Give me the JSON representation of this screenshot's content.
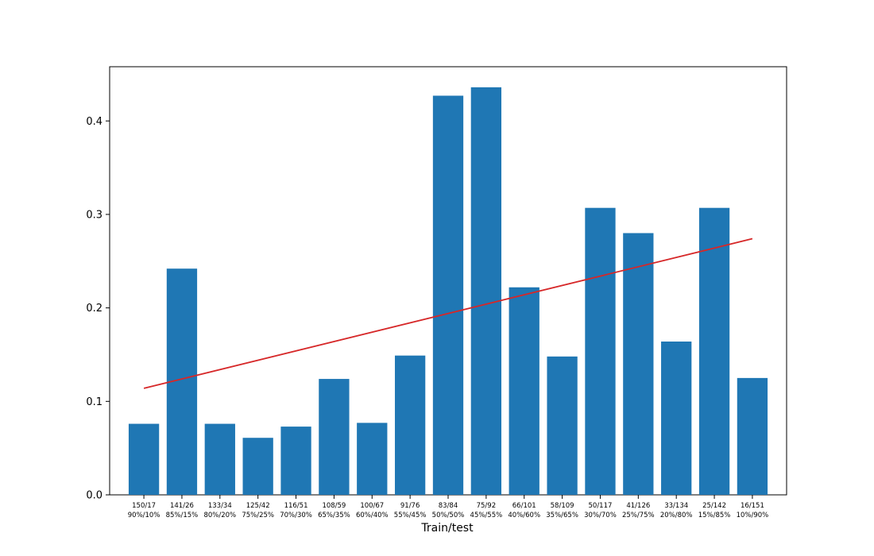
{
  "chart_data": {
    "type": "bar",
    "title": "",
    "xlabel": "Train/test",
    "ylabel": "",
    "ylim": [
      0,
      0.458
    ],
    "yticks": [
      "0.0",
      "0.1",
      "0.2",
      "0.3",
      "0.4"
    ],
    "grid": false,
    "legend": "none",
    "categories": [
      {
        "counts": "150/17",
        "percent": "90%/10%"
      },
      {
        "counts": "141/26",
        "percent": "85%/15%"
      },
      {
        "counts": "133/34",
        "percent": "80%/20%"
      },
      {
        "counts": "125/42",
        "percent": "75%/25%"
      },
      {
        "counts": "116/51",
        "percent": "70%/30%"
      },
      {
        "counts": "108/59",
        "percent": "65%/35%"
      },
      {
        "counts": "100/67",
        "percent": "60%/40%"
      },
      {
        "counts": "91/76",
        "percent": "55%/45%"
      },
      {
        "counts": "83/84",
        "percent": "50%/50%"
      },
      {
        "counts": "75/92",
        "percent": "45%/55%"
      },
      {
        "counts": "66/101",
        "percent": "40%/60%"
      },
      {
        "counts": "58/109",
        "percent": "35%/65%"
      },
      {
        "counts": "50/117",
        "percent": "30%/70%"
      },
      {
        "counts": "41/126",
        "percent": "25%/75%"
      },
      {
        "counts": "33/134",
        "percent": "20%/80%"
      },
      {
        "counts": "25/142",
        "percent": "15%/85%"
      },
      {
        "counts": "16/151",
        "percent": "10%/90%"
      }
    ],
    "values": [
      0.076,
      0.242,
      0.076,
      0.061,
      0.073,
      0.124,
      0.077,
      0.149,
      0.427,
      0.436,
      0.222,
      0.148,
      0.307,
      0.28,
      0.164,
      0.307,
      0.125
    ],
    "trendline": {
      "type": "line",
      "from": 0.114,
      "to": 0.274
    },
    "colors": {
      "bar": "#1f77b4",
      "trendline": "#d62728",
      "axis": "#000000"
    }
  }
}
